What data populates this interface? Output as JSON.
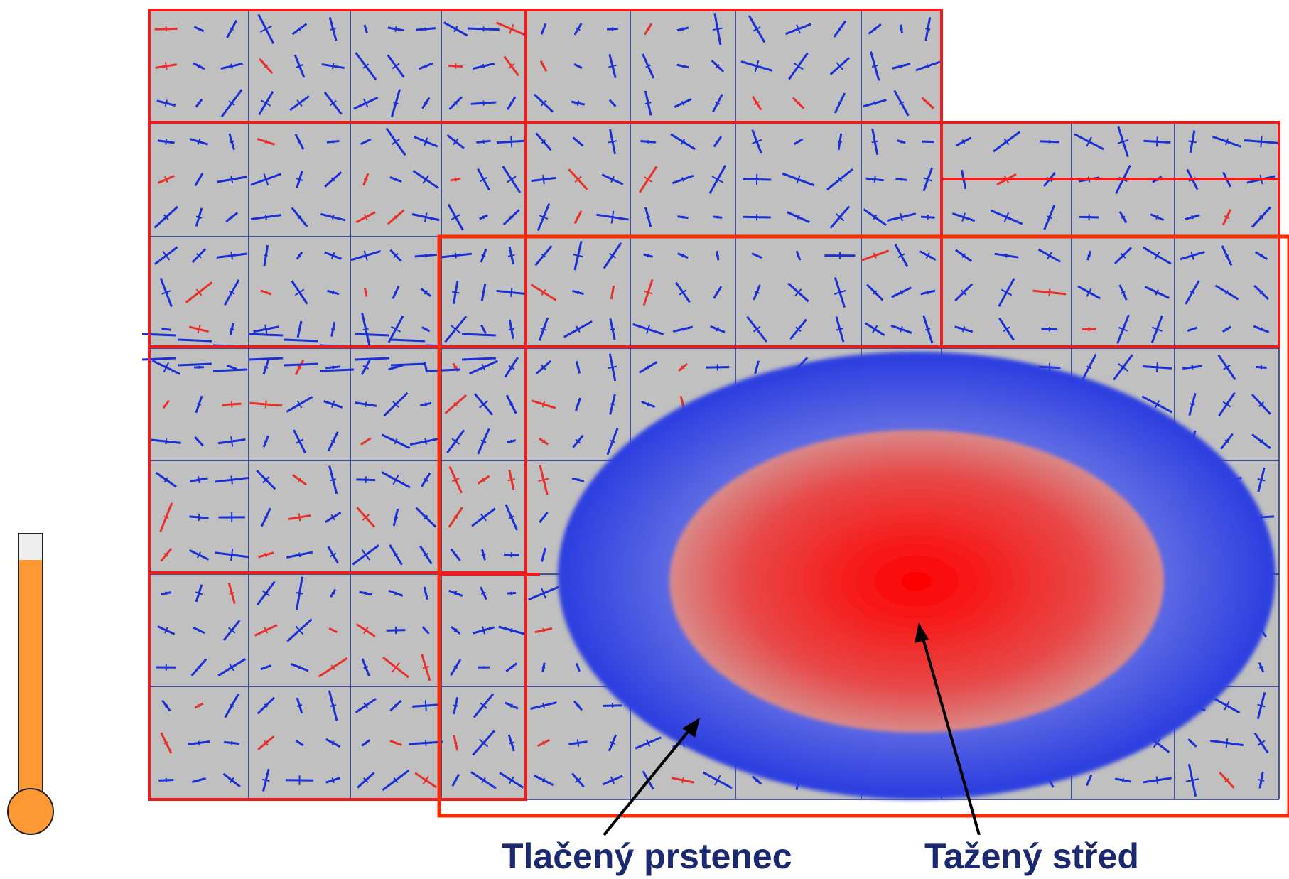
{
  "colors": {
    "background": "#ffffff",
    "cell_fill": "#c0c0c0",
    "grid_line": "#1c2a78",
    "block_border": "#ee1c1c",
    "outer_border": "#ff2a00",
    "vector_compression": "#1a2fd4",
    "vector_tension": "#e8302a",
    "ring_color": "#2f3fe0",
    "center_color": "#ff0000",
    "label_color": "#1b2a70",
    "thermometer_fill": "#ff9933",
    "thermometer_empty": "#eeeeee",
    "arrow_color": "#000000"
  },
  "icons": {
    "thermometer": "thermometer-icon",
    "pointer": "arrow-icon"
  },
  "labels": {
    "ring": "Tlačený prstenec",
    "center": "Tažený střed"
  },
  "thermometer": {
    "level": 0.9
  }
}
